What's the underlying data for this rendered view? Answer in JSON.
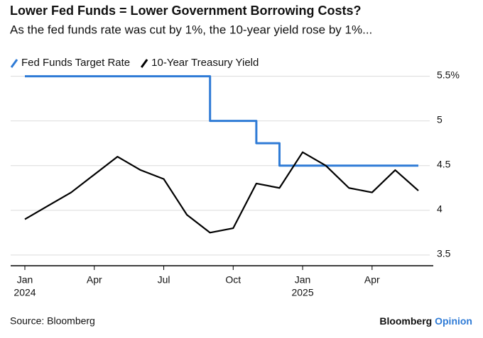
{
  "chart_data": {
    "type": "line",
    "title": "Lower Fed Funds = Lower Government Borrowing Costs?",
    "subtitle": "As the fed funds rate was cut by 1%, the 10-year yield rose by 1%...",
    "source": "Source: Bloomberg",
    "brand": "Bloomberg",
    "brand_suffix": "Opinion",
    "x": [
      "2024-01",
      "2024-02",
      "2024-03",
      "2024-04",
      "2024-05",
      "2024-06",
      "2024-07",
      "2024-08",
      "2024-09",
      "2024-10",
      "2024-11",
      "2024-12",
      "2025-01",
      "2025-02",
      "2025-03",
      "2025-04",
      "2025-05",
      "2025-06"
    ],
    "series": [
      {
        "name": "Fed Funds Target Rate",
        "color": "#2f7bd6",
        "step": true,
        "values": [
          5.5,
          5.5,
          5.5,
          5.5,
          5.5,
          5.5,
          5.5,
          5.5,
          5.0,
          5.0,
          4.75,
          4.5,
          4.5,
          4.5,
          4.5,
          4.5,
          4.5,
          4.5
        ]
      },
      {
        "name": "10-Year Treasury Yield",
        "color": "#000000",
        "values": [
          3.9,
          4.05,
          4.2,
          4.4,
          4.6,
          4.45,
          4.35,
          3.95,
          3.75,
          3.8,
          4.3,
          4.25,
          4.65,
          4.5,
          4.25,
          4.2,
          4.45,
          4.22
        ]
      }
    ],
    "xlim": [
      "2024-01",
      "2025-06"
    ],
    "xticks": [
      {
        "value": "2024-01",
        "label": "Jan"
      },
      {
        "value": "2024-04",
        "label": "Apr"
      },
      {
        "value": "2024-07",
        "label": "Jul"
      },
      {
        "value": "2024-10",
        "label": "Oct"
      },
      {
        "value": "2025-01",
        "label": "Jan"
      },
      {
        "value": "2025-04",
        "label": "Apr"
      }
    ],
    "x_year_labels": [
      {
        "value": "2024-01",
        "label": "2024"
      },
      {
        "value": "2025-01",
        "label": "2025"
      }
    ],
    "ylim": [
      3.38,
      5.56
    ],
    "yticks": [
      3.5,
      4.0,
      4.5,
      5.0,
      {
        "value": 5.5,
        "label": "5.5%"
      }
    ],
    "y_axis_side": "right",
    "grid": true
  }
}
